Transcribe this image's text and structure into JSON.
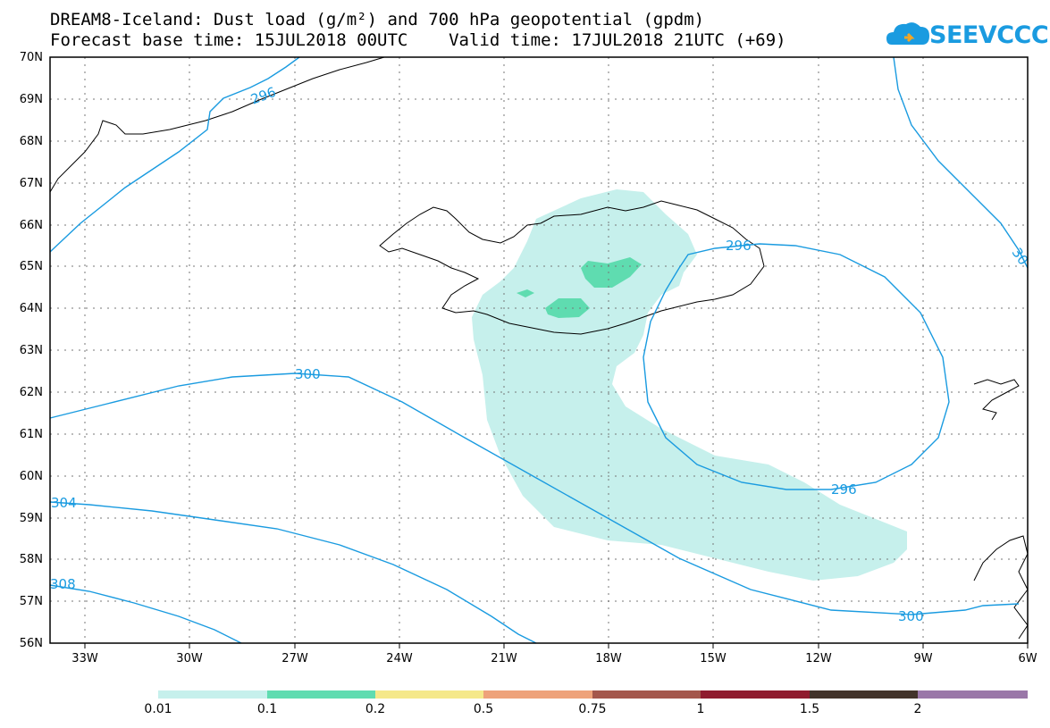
{
  "title": {
    "line1": "DREAM8-Iceland: Dust load (g/m²) and 700 hPa geopotential (gpdm)",
    "line2": "Forecast base time: 15JUL2018 00UTC    Valid time: 17JUL2018 21UTC (+69)"
  },
  "logo": {
    "text": "SEEVCCC",
    "icon": "cloud-logo-icon",
    "color": "#1a9be0"
  },
  "axes": {
    "lat_labels": [
      "70N",
      "69N",
      "68N",
      "67N",
      "66N",
      "65N",
      "64N",
      "63N",
      "62N",
      "61N",
      "60N",
      "59N",
      "58N",
      "57N",
      "56N"
    ],
    "lon_labels": [
      "33W",
      "30W",
      "27W",
      "24W",
      "21W",
      "18W",
      "15W",
      "12W",
      "9W",
      "6W"
    ],
    "lat_range": [
      56,
      70
    ],
    "lon_range": [
      -34.4,
      -6
    ],
    "grid": "dotted"
  },
  "contours": {
    "color": "#1a9be0",
    "labels": [
      "296",
      "296",
      "300",
      "296",
      "304",
      "300",
      "308",
      "30"
    ]
  },
  "colorbar": {
    "colors": [
      "#c6f0ec",
      "#5fdcb0",
      "#f5e88a",
      "#eea27a",
      "#a4574c",
      "#8f1b2e",
      "#42332a",
      "#9a77a8"
    ],
    "labels": [
      "0.01",
      "0.1",
      "0.2",
      "0.5",
      "0.75",
      "1",
      "1.5",
      "2"
    ]
  },
  "dust_colors": {
    "low": "#c6f0ec",
    "mid": "#5fdcb0"
  }
}
